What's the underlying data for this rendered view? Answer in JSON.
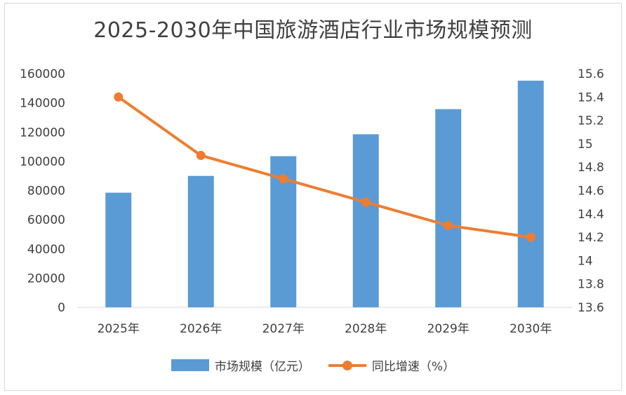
{
  "chart_data": {
    "type": "bar",
    "title": "2025-2030年中国旅游酒店行业市场规模预测",
    "categories": [
      "2025年",
      "2026年",
      "2027年",
      "2028年",
      "2029年",
      "2030年"
    ],
    "series": [
      {
        "name": "市场规模（亿元）",
        "type": "bar",
        "axis": "left",
        "color": "#5b9bd5",
        "values": [
          78500,
          90000,
          103500,
          118500,
          135700,
          155200
        ]
      },
      {
        "name": "同比增速（%）",
        "type": "line",
        "axis": "right",
        "color": "#ed7d31",
        "values": [
          15.4,
          14.9,
          14.7,
          14.5,
          14.3,
          14.2
        ]
      }
    ],
    "y_left": {
      "min": 0,
      "max": 160000,
      "step": 20000,
      "ticks": [
        "0",
        "20000",
        "40000",
        "60000",
        "80000",
        "100000",
        "120000",
        "140000",
        "160000"
      ]
    },
    "y_right": {
      "min": 13.6,
      "max": 15.6,
      "step": 0.2,
      "ticks": [
        "13.6",
        "13.8",
        "14",
        "14.2",
        "14.4",
        "14.6",
        "14.8",
        "15",
        "15.2",
        "15.4",
        "15.6"
      ]
    },
    "grid": false,
    "legend_position": "bottom"
  }
}
